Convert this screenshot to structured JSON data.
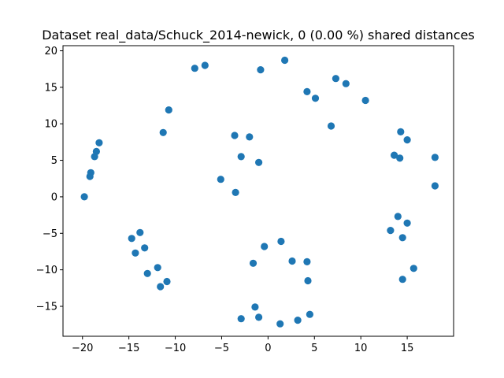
{
  "chart_data": {
    "type": "scatter",
    "title": "Dataset real_data/Schuck_2014-newick, 0 (0.00 %) shared distances",
    "xlabel": "",
    "ylabel": "",
    "xlim": [
      -22.1,
      20.0
    ],
    "ylim": [
      -19.1,
      20.7
    ],
    "xticks": [
      -20,
      -15,
      -10,
      -5,
      0,
      5,
      10,
      15
    ],
    "yticks": [
      -15,
      -10,
      -5,
      0,
      5,
      10,
      15,
      20
    ],
    "xtick_labels": [
      "−20",
      "−15",
      "−10",
      "−5",
      "0",
      "5",
      "10",
      "15"
    ],
    "ytick_labels": [
      "−15",
      "−10",
      "−5",
      "0",
      "5",
      "10",
      "15",
      "20"
    ],
    "grid": false,
    "legend": "none",
    "marker_color": "#1f77b4",
    "series": [
      {
        "x": [
          -19.8,
          -19.2,
          -19.1,
          -18.7,
          -18.5,
          -18.2,
          -14.7,
          -14.3,
          -13.8,
          -13.3,
          -13.0,
          -11.9,
          -11.6,
          -11.3,
          -10.9,
          -10.7,
          -7.9,
          -6.8,
          -5.1,
          -3.6,
          -3.5,
          -2.9,
          -2.9,
          -2.0,
          -1.6,
          -1.4,
          -1.0,
          -1.0,
          -0.8,
          -0.4,
          1.3,
          1.4,
          1.8,
          2.6,
          3.2,
          4.2,
          4.2,
          4.3,
          4.5,
          5.1,
          6.8,
          7.3,
          8.4,
          10.5,
          13.2,
          13.6,
          14.0,
          14.2,
          14.3,
          14.5,
          14.5,
          15.0,
          15.0,
          15.7,
          18.0,
          18.0
        ],
        "y": [
          0.0,
          2.8,
          3.3,
          5.5,
          6.2,
          7.4,
          -5.7,
          -7.7,
          -4.9,
          -7.0,
          -10.5,
          -9.7,
          -12.3,
          8.8,
          -11.6,
          11.9,
          17.6,
          18.0,
          2.4,
          8.4,
          0.6,
          5.5,
          -16.7,
          8.2,
          -9.1,
          -15.1,
          4.7,
          -16.5,
          17.4,
          -6.8,
          -17.4,
          -6.1,
          18.7,
          -8.8,
          -16.9,
          14.4,
          -8.9,
          -11.5,
          -16.1,
          13.5,
          9.7,
          16.2,
          15.5,
          13.2,
          -4.6,
          5.7,
          -2.7,
          5.3,
          8.9,
          -11.3,
          -5.6,
          7.8,
          -3.6,
          -9.8,
          5.4,
          1.5
        ]
      }
    ]
  }
}
